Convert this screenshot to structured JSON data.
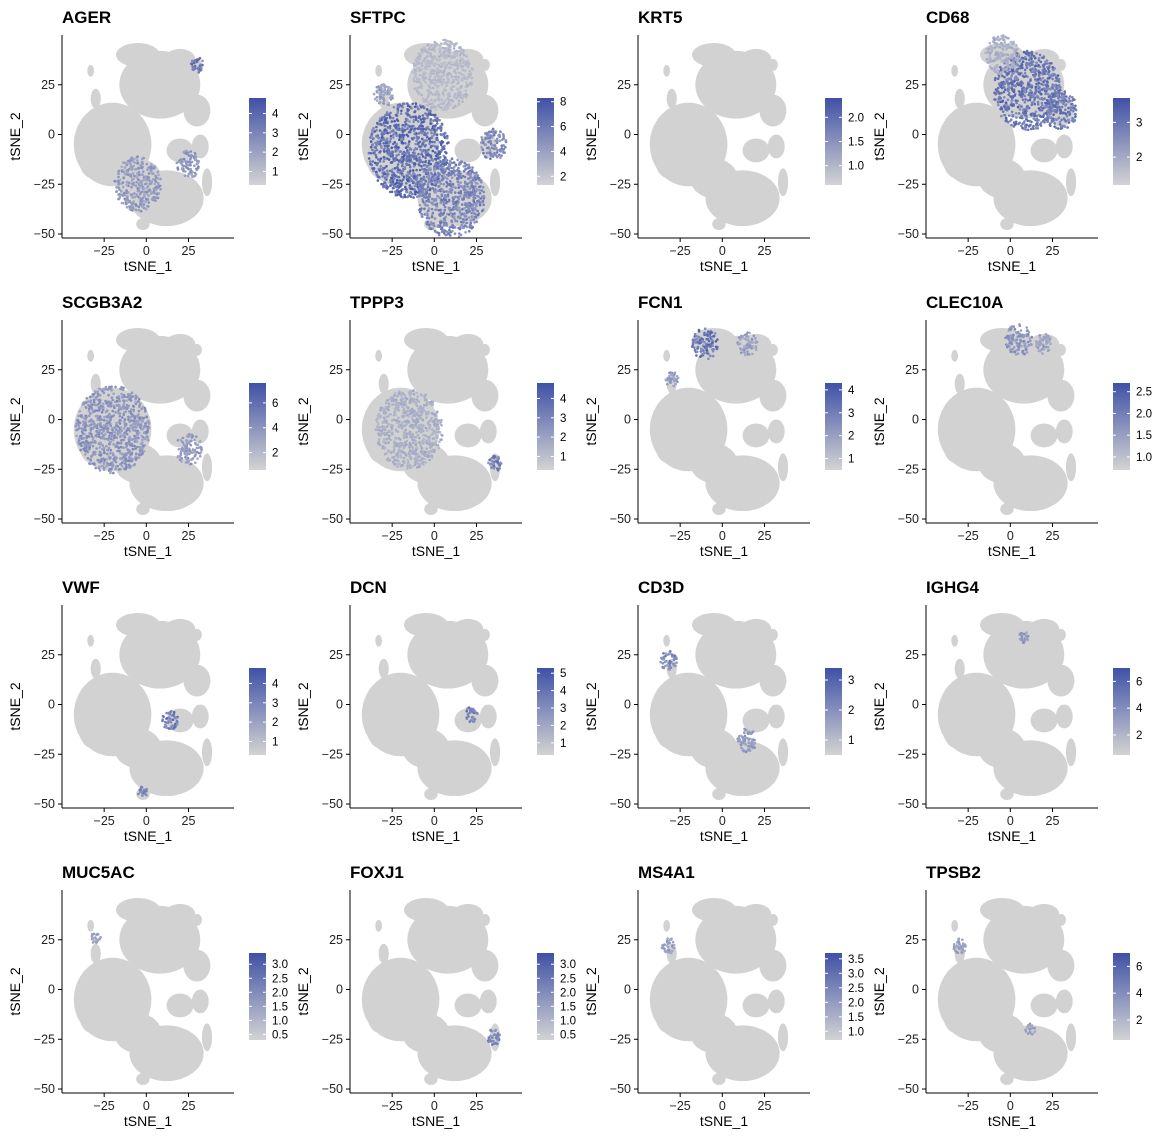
{
  "colors": {
    "low": "#d3d3d3",
    "high": "#3f51a6",
    "cloud": "#d2d2d2",
    "axis": "#000000"
  },
  "chart_data": [
    {
      "type": "scatter",
      "title": "AGER",
      "xlabel": "tSNE_1",
      "ylabel": "tSNE_2",
      "xticks": [
        -25,
        0,
        25
      ],
      "yticks": [
        -50,
        -25,
        0,
        25
      ],
      "xlim": [
        -50,
        52
      ],
      "ylim": [
        -52,
        50
      ],
      "legend": {
        "min": 0.3,
        "max": 4.8,
        "ticks": [
          1,
          2,
          3,
          4
        ],
        "tick_labels": [
          "1",
          "2",
          "3",
          "4"
        ]
      },
      "hotspots": [
        {
          "x": 30,
          "y": 35,
          "r": 4,
          "v": 0.9
        },
        {
          "x": -5,
          "y": -25,
          "r": 14,
          "v": 0.55
        },
        {
          "x": 25,
          "y": -15,
          "r": 7,
          "v": 0.6
        }
      ]
    },
    {
      "type": "scatter",
      "title": "SFTPC",
      "xlabel": "tSNE_1",
      "ylabel": "tSNE_2",
      "xticks": [
        -25,
        0,
        25
      ],
      "yticks": [
        -50,
        -25,
        0,
        25
      ],
      "xlim": [
        -50,
        52
      ],
      "ylim": [
        -52,
        50
      ],
      "legend": {
        "min": 1.3,
        "max": 8.3,
        "ticks": [
          2,
          4,
          6,
          8
        ],
        "tick_labels": [
          "2",
          "4",
          "6",
          "8"
        ]
      },
      "hotspots": [
        {
          "x": -15,
          "y": -8,
          "r": 24,
          "v": 0.95
        },
        {
          "x": 10,
          "y": -32,
          "r": 20,
          "v": 0.75
        },
        {
          "x": 35,
          "y": -5,
          "r": 8,
          "v": 0.7
        },
        {
          "x": -30,
          "y": 20,
          "r": 6,
          "v": 0.5
        },
        {
          "x": 5,
          "y": 30,
          "r": 18,
          "v": 0.25
        }
      ]
    },
    {
      "type": "scatter",
      "title": "KRT5",
      "xlabel": "tSNE_1",
      "ylabel": "tSNE_2",
      "xticks": [
        -25,
        0,
        25
      ],
      "yticks": [
        -50,
        -25,
        0,
        25
      ],
      "xlim": [
        -50,
        52
      ],
      "ylim": [
        -52,
        50
      ],
      "legend": {
        "min": 0.6,
        "max": 2.4,
        "ticks": [
          1.0,
          1.5,
          2.0
        ],
        "tick_labels": [
          "1.0",
          "1.5",
          "2.0"
        ]
      },
      "hotspots": []
    },
    {
      "type": "scatter",
      "title": "CD68",
      "xlabel": "tSNE_1",
      "ylabel": "tSNE_2",
      "xticks": [
        -25,
        0,
        25
      ],
      "yticks": [
        -50,
        -25,
        0,
        25
      ],
      "xlim": [
        -50,
        52
      ],
      "ylim": [
        -52,
        50
      ],
      "legend": {
        "min": 1.2,
        "max": 3.7,
        "ticks": [
          2,
          3
        ],
        "tick_labels": [
          "2",
          "3"
        ]
      },
      "hotspots": [
        {
          "x": 10,
          "y": 22,
          "r": 20,
          "v": 0.9
        },
        {
          "x": 30,
          "y": 12,
          "r": 10,
          "v": 0.85
        },
        {
          "x": -5,
          "y": 40,
          "r": 10,
          "v": 0.35
        }
      ]
    },
    {
      "type": "scatter",
      "title": "SCGB3A2",
      "xlabel": "tSNE_1",
      "ylabel": "tSNE_2",
      "xticks": [
        -25,
        0,
        25
      ],
      "yticks": [
        -50,
        -25,
        0,
        25
      ],
      "xlim": [
        -50,
        52
      ],
      "ylim": [
        -52,
        50
      ],
      "legend": {
        "min": 0.6,
        "max": 7.6,
        "ticks": [
          2,
          4,
          6
        ],
        "tick_labels": [
          "2",
          "4",
          "6"
        ]
      },
      "hotspots": [
        {
          "x": -20,
          "y": -5,
          "r": 22,
          "v": 0.6
        },
        {
          "x": 25,
          "y": -15,
          "r": 8,
          "v": 0.55
        }
      ]
    },
    {
      "type": "scatter",
      "title": "TPPP3",
      "xlabel": "tSNE_1",
      "ylabel": "tSNE_2",
      "xticks": [
        -25,
        0,
        25
      ],
      "yticks": [
        -50,
        -25,
        0,
        25
      ],
      "xlim": [
        -50,
        52
      ],
      "ylim": [
        -52,
        50
      ],
      "legend": {
        "min": 0.3,
        "max": 4.8,
        "ticks": [
          1,
          2,
          3,
          4
        ],
        "tick_labels": [
          "1",
          "2",
          "3",
          "4"
        ]
      },
      "hotspots": [
        {
          "x": -15,
          "y": -5,
          "r": 20,
          "v": 0.35
        },
        {
          "x": 36,
          "y": -22,
          "r": 4,
          "v": 0.8
        }
      ]
    },
    {
      "type": "scatter",
      "title": "FCN1",
      "xlabel": "tSNE_1",
      "ylabel": "tSNE_2",
      "xticks": [
        -25,
        0,
        25
      ],
      "yticks": [
        -50,
        -25,
        0,
        25
      ],
      "xlim": [
        -50,
        52
      ],
      "ylim": [
        -52,
        50
      ],
      "legend": {
        "min": 0.5,
        "max": 4.3,
        "ticks": [
          1,
          2,
          3,
          4
        ],
        "tick_labels": [
          "1",
          "2",
          "3",
          "4"
        ]
      },
      "hotspots": [
        {
          "x": -10,
          "y": 38,
          "r": 8,
          "v": 0.9
        },
        {
          "x": 15,
          "y": 38,
          "r": 6,
          "v": 0.5
        },
        {
          "x": -30,
          "y": 20,
          "r": 4,
          "v": 0.5
        }
      ]
    },
    {
      "type": "scatter",
      "title": "CLEC10A",
      "xlabel": "tSNE_1",
      "ylabel": "tSNE_2",
      "xticks": [
        -25,
        0,
        25
      ],
      "yticks": [
        -50,
        -25,
        0,
        25
      ],
      "xlim": [
        -50,
        52
      ],
      "ylim": [
        -52,
        50
      ],
      "legend": {
        "min": 0.7,
        "max": 2.7,
        "ticks": [
          1.0,
          1.5,
          2.0,
          2.5
        ],
        "tick_labels": [
          "1.0",
          "1.5",
          "2.0",
          "2.5"
        ]
      },
      "hotspots": [
        {
          "x": 5,
          "y": 40,
          "r": 8,
          "v": 0.6
        },
        {
          "x": 20,
          "y": 38,
          "r": 5,
          "v": 0.5
        }
      ]
    },
    {
      "type": "scatter",
      "title": "VWF",
      "xlabel": "tSNE_1",
      "ylabel": "tSNE_2",
      "xticks": [
        -25,
        0,
        25
      ],
      "yticks": [
        -50,
        -25,
        0,
        25
      ],
      "xlim": [
        -50,
        52
      ],
      "ylim": [
        -52,
        50
      ],
      "legend": {
        "min": 0.3,
        "max": 4.8,
        "ticks": [
          1,
          2,
          3,
          4
        ],
        "tick_labels": [
          "1",
          "2",
          "3",
          "4"
        ]
      },
      "hotspots": [
        {
          "x": 14,
          "y": -8,
          "r": 5,
          "v": 0.85
        },
        {
          "x": -2,
          "y": -44,
          "r": 3,
          "v": 0.8
        }
      ]
    },
    {
      "type": "scatter",
      "title": "DCN",
      "xlabel": "tSNE_1",
      "ylabel": "tSNE_2",
      "xticks": [
        -25,
        0,
        25
      ],
      "yticks": [
        -50,
        -25,
        0,
        25
      ],
      "xlim": [
        -50,
        52
      ],
      "ylim": [
        -52,
        50
      ],
      "legend": {
        "min": 0.3,
        "max": 5.3,
        "ticks": [
          1,
          2,
          3,
          4,
          5
        ],
        "tick_labels": [
          "1",
          "2",
          "3",
          "4",
          "5"
        ]
      },
      "hotspots": [
        {
          "x": 22,
          "y": -5,
          "r": 4,
          "v": 0.8
        }
      ]
    },
    {
      "type": "scatter",
      "title": "CD3D",
      "xlabel": "tSNE_1",
      "ylabel": "tSNE_2",
      "xticks": [
        -25,
        0,
        25
      ],
      "yticks": [
        -50,
        -25,
        0,
        25
      ],
      "xlim": [
        -50,
        52
      ],
      "ylim": [
        -52,
        50
      ],
      "legend": {
        "min": 0.5,
        "max": 3.4,
        "ticks": [
          1,
          2,
          3
        ],
        "tick_labels": [
          "1",
          "2",
          "3"
        ]
      },
      "hotspots": [
        {
          "x": -32,
          "y": 22,
          "r": 5,
          "v": 0.7
        },
        {
          "x": 15,
          "y": -18,
          "r": 6,
          "v": 0.55
        }
      ]
    },
    {
      "type": "scatter",
      "title": "IGHG4",
      "xlabel": "tSNE_1",
      "ylabel": "tSNE_2",
      "xticks": [
        -25,
        0,
        25
      ],
      "yticks": [
        -50,
        -25,
        0,
        25
      ],
      "xlim": [
        -50,
        52
      ],
      "ylim": [
        -52,
        50
      ],
      "legend": {
        "min": 0.5,
        "max": 7.0,
        "ticks": [
          2,
          4,
          6
        ],
        "tick_labels": [
          "2",
          "4",
          "6"
        ]
      },
      "hotspots": [
        {
          "x": 8,
          "y": 34,
          "r": 3,
          "v": 0.6
        }
      ]
    },
    {
      "type": "scatter",
      "title": "MUC5AC",
      "xlabel": "tSNE_1",
      "ylabel": "tSNE_2",
      "xticks": [
        -25,
        0,
        25
      ],
      "yticks": [
        -50,
        -25,
        0,
        25
      ],
      "xlim": [
        -50,
        52
      ],
      "ylim": [
        -52,
        50
      ],
      "legend": {
        "min": 0.3,
        "max": 3.4,
        "ticks": [
          0.5,
          1.0,
          1.5,
          2.0,
          2.5,
          3.0
        ],
        "tick_labels": [
          "0.5",
          "1.0",
          "1.5",
          "2.0",
          "2.5",
          "3.0"
        ]
      },
      "hotspots": [
        {
          "x": -30,
          "y": 26,
          "r": 3,
          "v": 0.5
        }
      ]
    },
    {
      "type": "scatter",
      "title": "FOXJ1",
      "xlabel": "tSNE_1",
      "ylabel": "tSNE_2",
      "xticks": [
        -25,
        0,
        25
      ],
      "yticks": [
        -50,
        -25,
        0,
        25
      ],
      "xlim": [
        -50,
        52
      ],
      "ylim": [
        -52,
        50
      ],
      "legend": {
        "min": 0.3,
        "max": 3.4,
        "ticks": [
          0.5,
          1.0,
          1.5,
          2.0,
          2.5,
          3.0
        ],
        "tick_labels": [
          "0.5",
          "1.0",
          "1.5",
          "2.0",
          "2.5",
          "3.0"
        ]
      },
      "hotspots": [
        {
          "x": 35,
          "y": -24,
          "r": 4,
          "v": 0.75
        }
      ]
    },
    {
      "type": "scatter",
      "title": "MS4A1",
      "xlabel": "tSNE_1",
      "ylabel": "tSNE_2",
      "xticks": [
        -25,
        0,
        25
      ],
      "yticks": [
        -50,
        -25,
        0,
        25
      ],
      "xlim": [
        -50,
        52
      ],
      "ylim": [
        -52,
        50
      ],
      "legend": {
        "min": 0.7,
        "max": 3.7,
        "ticks": [
          1.0,
          1.5,
          2.0,
          2.5,
          3.0,
          3.5
        ],
        "tick_labels": [
          "1.0",
          "1.5",
          "2.0",
          "2.5",
          "3.0",
          "3.5"
        ]
      },
      "hotspots": [
        {
          "x": -32,
          "y": 22,
          "r": 4,
          "v": 0.5
        }
      ]
    },
    {
      "type": "scatter",
      "title": "TPSB2",
      "xlabel": "tSNE_1",
      "ylabel": "tSNE_2",
      "xticks": [
        -25,
        0,
        25
      ],
      "yticks": [
        -50,
        -25,
        0,
        25
      ],
      "xlim": [
        -50,
        52
      ],
      "ylim": [
        -52,
        50
      ],
      "legend": {
        "min": 0.5,
        "max": 7.0,
        "ticks": [
          2,
          4,
          6
        ],
        "tick_labels": [
          "2",
          "4",
          "6"
        ]
      },
      "hotspots": [
        {
          "x": -30,
          "y": 22,
          "r": 4,
          "v": 0.5
        },
        {
          "x": 12,
          "y": -20,
          "r": 3,
          "v": 0.5
        }
      ]
    }
  ]
}
